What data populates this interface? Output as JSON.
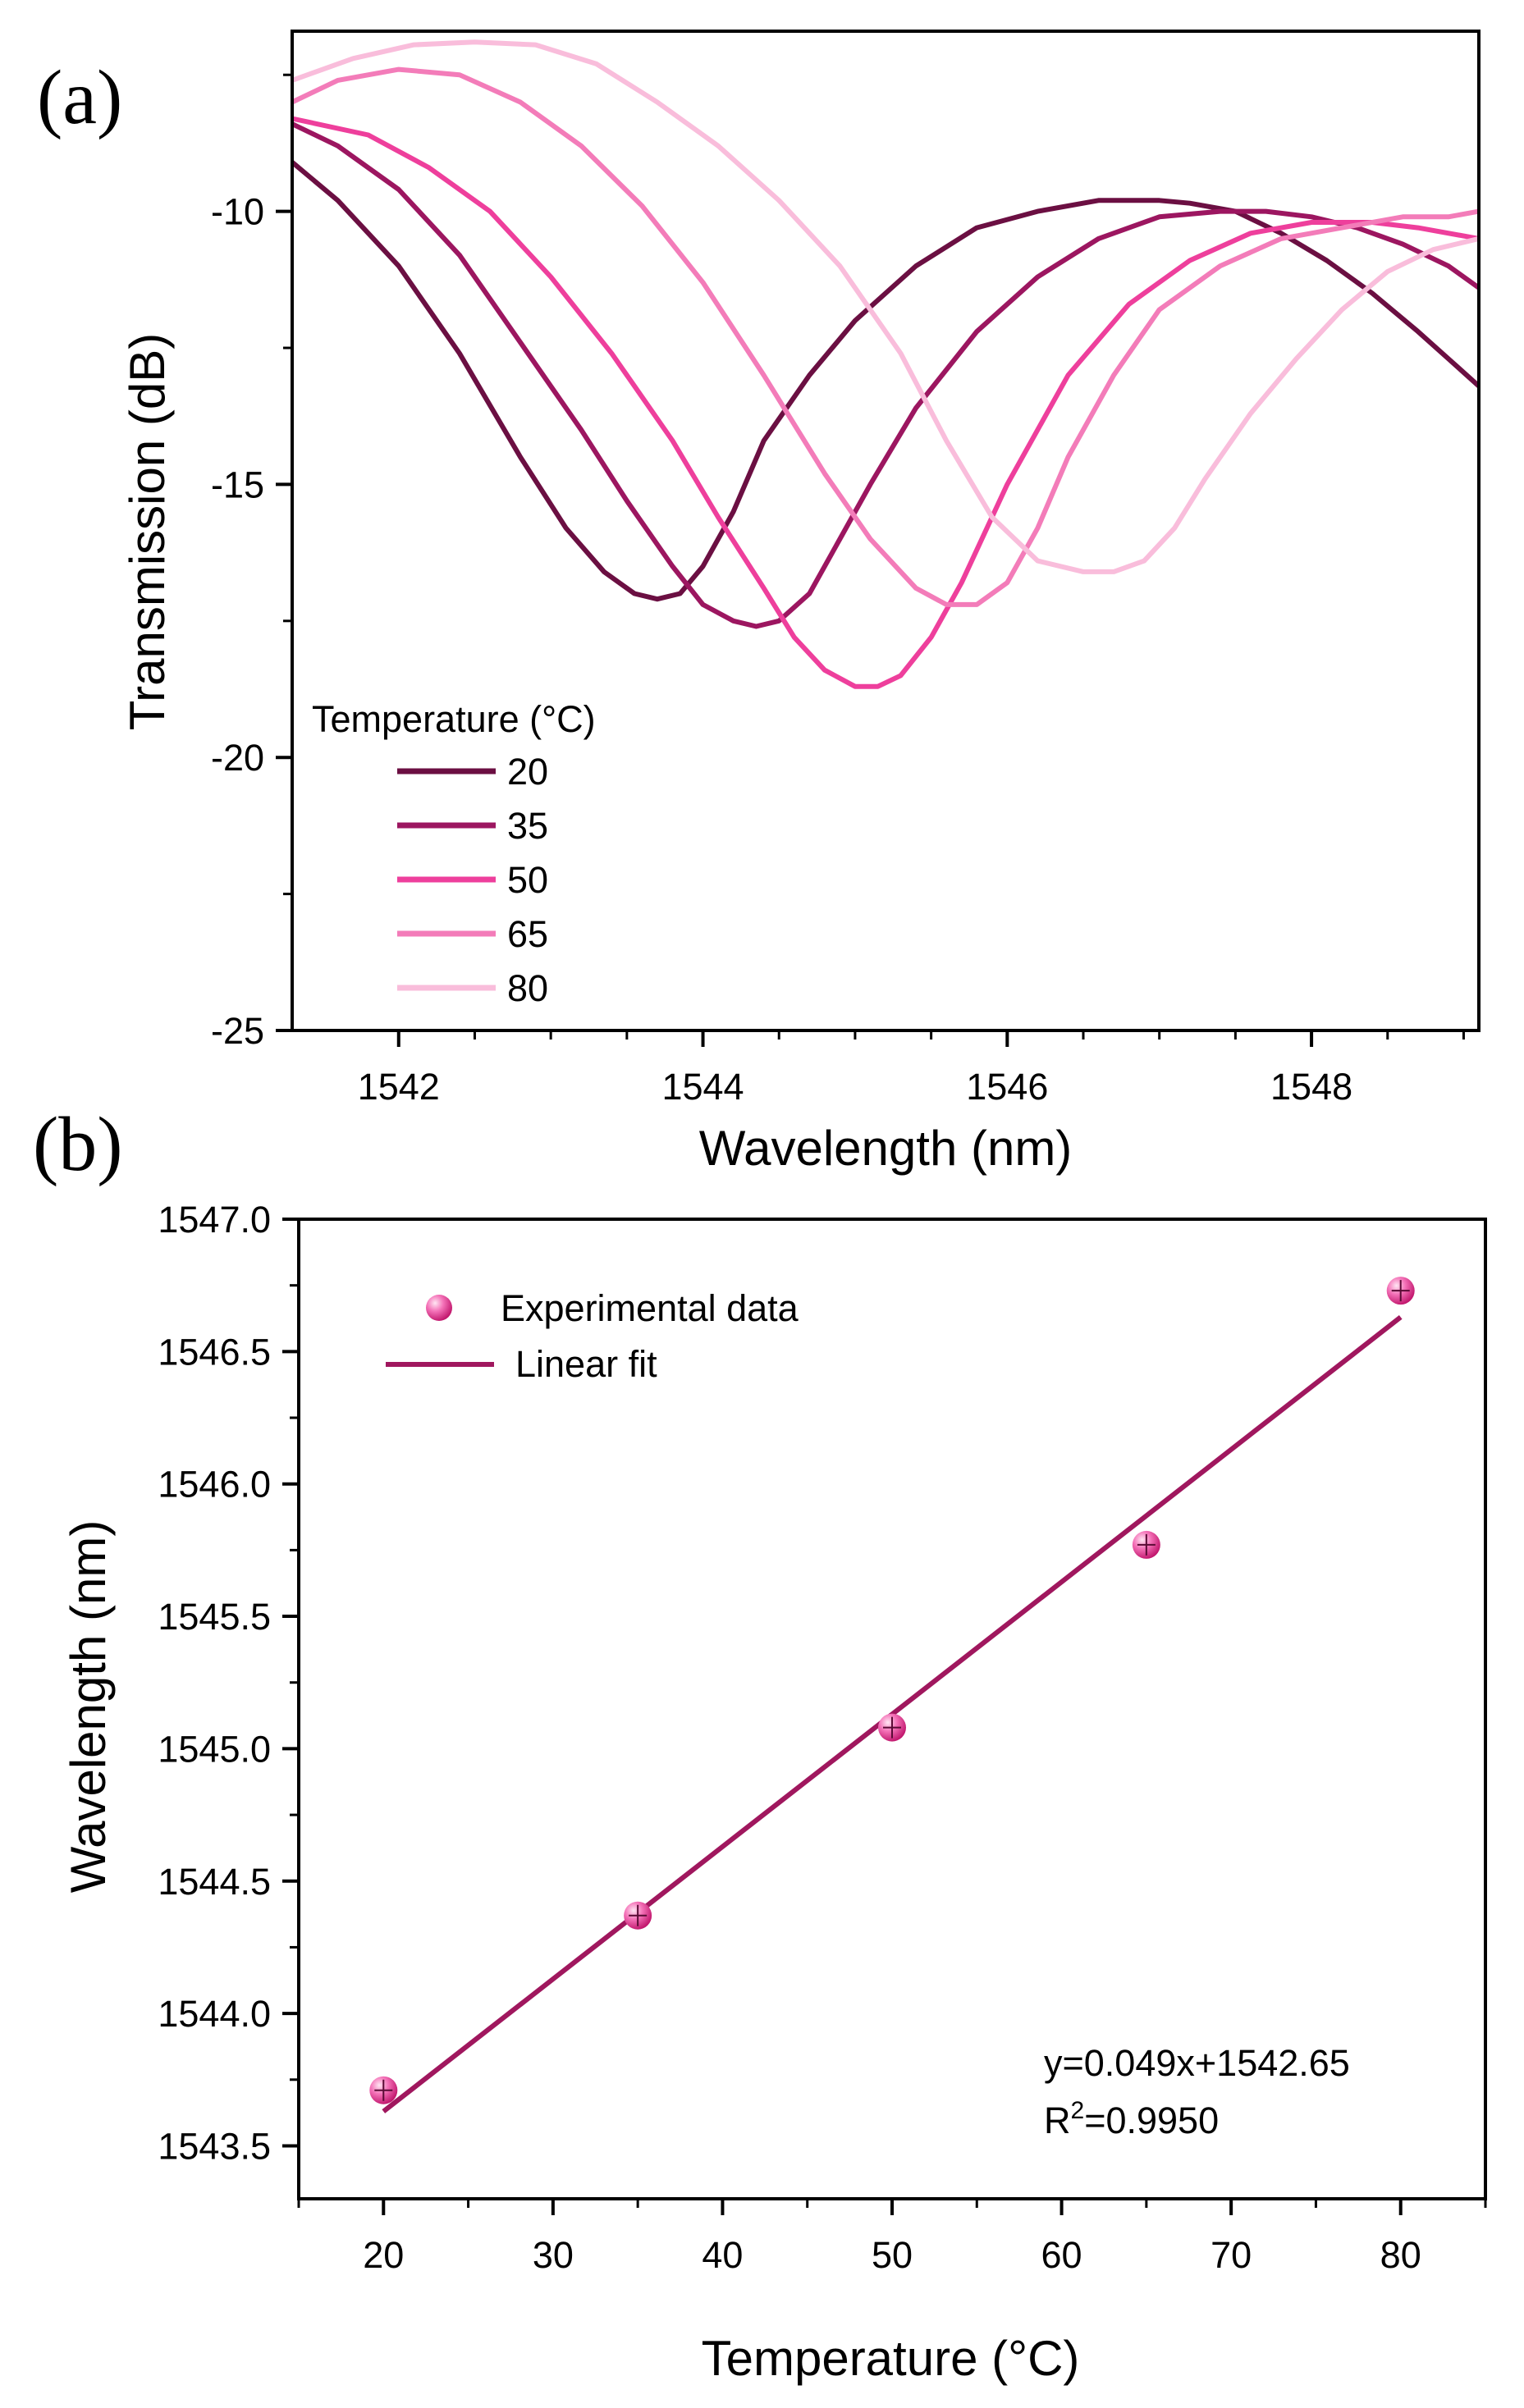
{
  "colors": {
    "t20": "#6b0f42",
    "t35": "#9c1660",
    "t50": "#ee3f9c",
    "t65": "#f37cb9",
    "t80": "#f9bddb",
    "fit": "#a0175e",
    "marker": "#f272b8",
    "axis": "#000000"
  },
  "chart_data": [
    {
      "panel_label": "(a)",
      "type": "line",
      "xlabel": "Wavelength (nm)",
      "ylabel": "Transmission (dB)",
      "xlim": [
        1541.3,
        1549.1
      ],
      "ylim": [
        -25,
        -6.7
      ],
      "xticks": [
        1542,
        1544,
        1546,
        1548
      ],
      "xtick_labels": [
        "1542",
        "1544",
        "1546",
        "1548"
      ],
      "yticks": [
        -25,
        -20,
        -15,
        -10
      ],
      "ytick_labels": [
        "-25",
        "-20",
        "-15",
        "-10"
      ],
      "legend_title": "Temperature (°C)",
      "legend_position": "bottom-left",
      "series": [
        {
          "name": "20",
          "color_key": "t20",
          "x": [
            1541.3,
            1541.6,
            1542.0,
            1542.4,
            1542.8,
            1543.1,
            1543.35,
            1543.55,
            1543.7,
            1543.85,
            1544.0,
            1544.2,
            1544.4,
            1544.7,
            1545.0,
            1545.4,
            1545.8,
            1546.2,
            1546.6,
            1547.0,
            1547.2,
            1547.5,
            1547.8,
            1548.1,
            1548.4,
            1548.7,
            1548.9,
            1549.1
          ],
          "y": [
            -9.1,
            -9.8,
            -11.0,
            -12.6,
            -14.5,
            -15.8,
            -16.6,
            -17.0,
            -17.1,
            -17.0,
            -16.5,
            -15.5,
            -14.2,
            -13.0,
            -12.0,
            -11.0,
            -10.3,
            -10.0,
            -9.8,
            -9.8,
            -9.85,
            -10.0,
            -10.4,
            -10.9,
            -11.5,
            -12.2,
            -12.7,
            -13.2
          ]
        },
        {
          "name": "35",
          "color_key": "t35",
          "x": [
            1541.3,
            1541.6,
            1542.0,
            1542.4,
            1542.8,
            1543.2,
            1543.5,
            1543.8,
            1544.0,
            1544.2,
            1544.35,
            1544.5,
            1544.7,
            1544.9,
            1545.1,
            1545.4,
            1545.8,
            1546.2,
            1546.6,
            1547.0,
            1547.4,
            1547.7,
            1548.0,
            1548.3,
            1548.6,
            1548.9,
            1549.1
          ],
          "y": [
            -8.4,
            -8.8,
            -9.6,
            -10.8,
            -12.4,
            -14.0,
            -15.3,
            -16.5,
            -17.2,
            -17.5,
            -17.6,
            -17.5,
            -17.0,
            -16.0,
            -15.0,
            -13.6,
            -12.2,
            -11.2,
            -10.5,
            -10.1,
            -10.0,
            -10.0,
            -10.1,
            -10.3,
            -10.6,
            -11.0,
            -11.4
          ]
        },
        {
          "name": "50",
          "color_key": "t50",
          "x": [
            1541.3,
            1541.8,
            1542.2,
            1542.6,
            1543.0,
            1543.4,
            1543.8,
            1544.1,
            1544.4,
            1544.6,
            1544.8,
            1545.0,
            1545.15,
            1545.3,
            1545.5,
            1545.7,
            1546.0,
            1546.4,
            1546.8,
            1547.2,
            1547.6,
            1548.0,
            1548.4,
            1548.7,
            1549.1
          ],
          "y": [
            -8.3,
            -8.6,
            -9.2,
            -10.0,
            -11.2,
            -12.6,
            -14.2,
            -15.6,
            -16.9,
            -17.8,
            -18.4,
            -18.7,
            -18.7,
            -18.5,
            -17.8,
            -16.8,
            -15.0,
            -13.0,
            -11.7,
            -10.9,
            -10.4,
            -10.2,
            -10.2,
            -10.3,
            -10.5
          ]
        },
        {
          "name": "65",
          "color_key": "t65",
          "x": [
            1541.3,
            1541.6,
            1542.0,
            1542.4,
            1542.8,
            1543.2,
            1543.6,
            1544.0,
            1544.4,
            1544.8,
            1545.1,
            1545.4,
            1545.6,
            1545.8,
            1546.0,
            1546.2,
            1546.4,
            1546.7,
            1547.0,
            1547.4,
            1547.8,
            1548.2,
            1548.6,
            1548.9,
            1549.1
          ],
          "y": [
            -8.0,
            -7.6,
            -7.4,
            -7.5,
            -8.0,
            -8.8,
            -9.9,
            -11.3,
            -13.0,
            -14.8,
            -16.0,
            -16.9,
            -17.2,
            -17.2,
            -16.8,
            -15.8,
            -14.5,
            -13.0,
            -11.8,
            -11.0,
            -10.5,
            -10.3,
            -10.1,
            -10.1,
            -10.0
          ]
        },
        {
          "name": "80",
          "color_key": "t80",
          "x": [
            1541.3,
            1541.7,
            1542.1,
            1542.5,
            1542.9,
            1543.3,
            1543.7,
            1544.1,
            1544.5,
            1544.9,
            1545.3,
            1545.6,
            1545.9,
            1546.2,
            1546.5,
            1546.7,
            1546.9,
            1547.1,
            1547.3,
            1547.6,
            1547.9,
            1548.2,
            1548.5,
            1548.8,
            1549.1
          ],
          "y": [
            -7.6,
            -7.2,
            -6.95,
            -6.9,
            -6.95,
            -7.3,
            -8.0,
            -8.8,
            -9.8,
            -11.0,
            -12.6,
            -14.2,
            -15.6,
            -16.4,
            -16.6,
            -16.6,
            -16.4,
            -15.8,
            -14.9,
            -13.7,
            -12.7,
            -11.8,
            -11.1,
            -10.7,
            -10.5
          ]
        }
      ]
    },
    {
      "panel_label": "(b)",
      "type": "scatter",
      "xlabel": "Temperature (°C)",
      "ylabel": "Wavelength (nm)",
      "xlim": [
        15,
        85
      ],
      "ylim": [
        1543.3,
        1547.0
      ],
      "xticks": [
        20,
        30,
        40,
        50,
        60,
        70,
        80
      ],
      "xtick_labels": [
        "20",
        "30",
        "40",
        "50",
        "60",
        "70",
        "80"
      ],
      "yticks": [
        1543.5,
        1544.0,
        1544.5,
        1545.0,
        1545.5,
        1546.0,
        1546.5,
        1547.0
      ],
      "ytick_labels": [
        "1543.5",
        "1544.0",
        "1544.5",
        "1545.0",
        "1545.5",
        "1546.0",
        "1546.5",
        "1547.0"
      ],
      "legend_position": "top-left",
      "series": [
        {
          "name": "Experimental data",
          "kind": "scatter",
          "color_key": "marker",
          "x": [
            20,
            35,
            50,
            65,
            80
          ],
          "y": [
            1543.71,
            1544.37,
            1545.08,
            1545.77,
            1546.73
          ]
        },
        {
          "name": "Linear fit",
          "kind": "line",
          "color_key": "fit",
          "x": [
            20,
            80
          ],
          "y": [
            1543.63,
            1546.63
          ]
        }
      ],
      "annotation": {
        "equation": "y=0.049x+1542.65",
        "r2_prefix": "R",
        "r2_sup": "2",
        "r2_value": "=0.9950"
      }
    }
  ]
}
